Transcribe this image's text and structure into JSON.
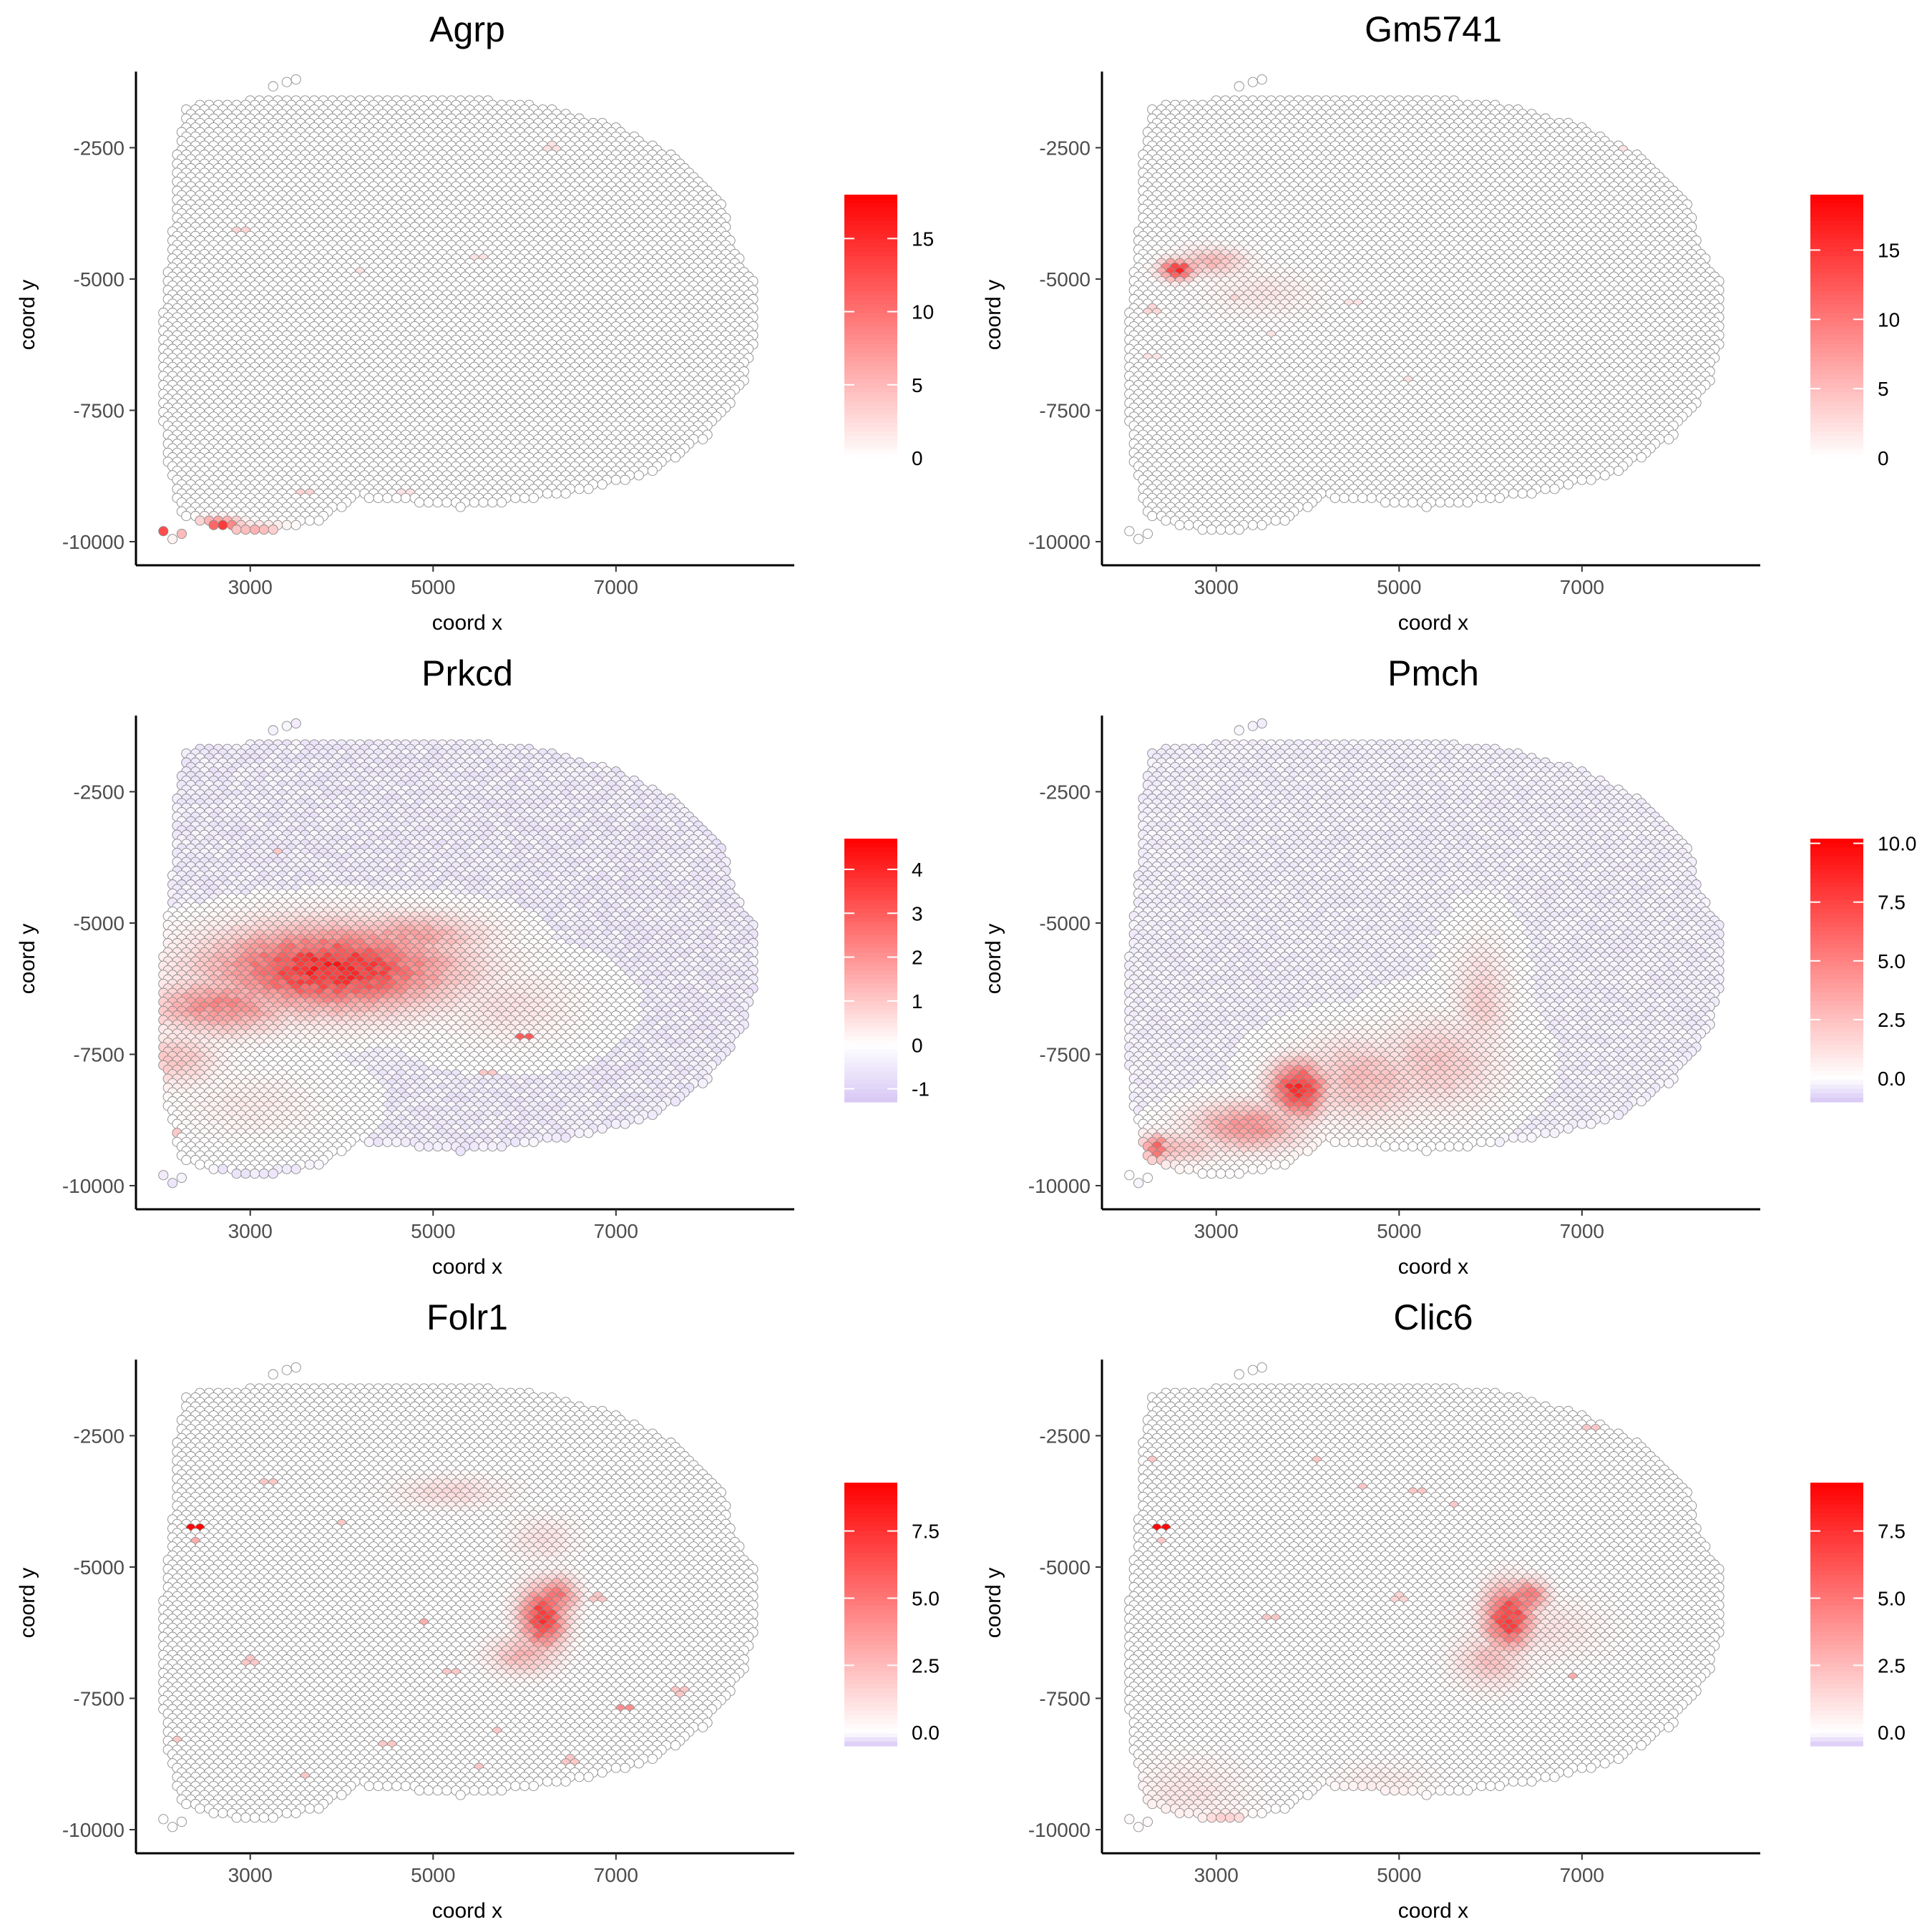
{
  "chart_data": [
    {
      "type": "scatter",
      "title": "Agrp",
      "xlabel": "coord x",
      "ylabel": "coord y",
      "x_ticks": [
        "3000",
        "5000",
        "7000"
      ],
      "y_ticks": [
        "-2500",
        "-5000",
        "-7500",
        "-10000"
      ],
      "xlim": [
        1750,
        8950
      ],
      "ylim": [
        -10450,
        -1050
      ],
      "legend_ticks": [
        "0",
        "5",
        "10",
        "15"
      ],
      "color_range": [
        0,
        18
      ],
      "legend_placement": "right",
      "grid": false,
      "colors": {
        "low": "#ffffff",
        "high": "#ff0000",
        "negative": "#d7c7f5"
      },
      "background_value": 0,
      "hotspots": [
        {
          "x": 2050,
          "y": -9780,
          "sx": 90,
          "sy": 80,
          "value": 15
        },
        {
          "x": 2200,
          "y": -9750,
          "sx": 120,
          "sy": 90,
          "value": 12
        },
        {
          "x": 2650,
          "y": -9690,
          "sx": 160,
          "sy": 80,
          "value": 15
        },
        {
          "x": 3050,
          "y": -9820,
          "sx": 260,
          "sy": 90,
          "value": 7
        }
      ],
      "scattered_points": [
        {
          "x": 2100,
          "y": -9500,
          "value": 3
        },
        {
          "x": 2900,
          "y": -4100,
          "value": 3
        },
        {
          "x": 4200,
          "y": -4900,
          "value": 2
        },
        {
          "x": 6300,
          "y": -2500,
          "value": 2
        },
        {
          "x": 4700,
          "y": -9100,
          "value": 2
        },
        {
          "x": 3600,
          "y": -9100,
          "value": 3
        },
        {
          "x": 5500,
          "y": -4600,
          "value": 2
        }
      ]
    },
    {
      "type": "scatter",
      "title": "Gm5741",
      "xlabel": "coord x",
      "ylabel": "coord y",
      "x_ticks": [
        "3000",
        "5000",
        "7000"
      ],
      "y_ticks": [
        "-2500",
        "-5000",
        "-7500",
        "-10000"
      ],
      "xlim": [
        1750,
        8950
      ],
      "ylim": [
        -10450,
        -1050
      ],
      "legend_ticks": [
        "0",
        "5",
        "10",
        "15"
      ],
      "color_range": [
        0,
        19
      ],
      "legend_placement": "right",
      "grid": false,
      "colors": {
        "low": "#ffffff",
        "high": "#ff0000",
        "negative": "#d7c7f5"
      },
      "background_value": 0,
      "hotspots": [
        {
          "x": 2580,
          "y": -4850,
          "sx": 130,
          "sy": 130,
          "value": 17
        },
        {
          "x": 2950,
          "y": -4700,
          "sx": 250,
          "sy": 180,
          "value": 6
        },
        {
          "x": 3500,
          "y": -5300,
          "sx": 400,
          "sy": 300,
          "value": 2
        }
      ],
      "scattered_points": [
        {
          "x": 2300,
          "y": -5600,
          "value": 3
        },
        {
          "x": 2300,
          "y": -6500,
          "value": 2
        },
        {
          "x": 3200,
          "y": -5400,
          "value": 3
        },
        {
          "x": 4500,
          "y": -5500,
          "value": 2
        },
        {
          "x": 5100,
          "y": -6900,
          "value": 2
        },
        {
          "x": 7500,
          "y": -2500,
          "value": 2
        },
        {
          "x": 3600,
          "y": -6100,
          "value": 2
        }
      ]
    },
    {
      "type": "scatter",
      "title": "Prkcd",
      "xlabel": "coord x",
      "ylabel": "coord y",
      "x_ticks": [
        "3000",
        "5000",
        "7000"
      ],
      "y_ticks": [
        "-2500",
        "-5000",
        "-7500",
        "-10000"
      ],
      "xlim": [
        1750,
        8950
      ],
      "ylim": [
        -10450,
        -1050
      ],
      "legend_ticks": [
        "-1",
        "0",
        "1",
        "2",
        "3",
        "4"
      ],
      "color_range": [
        -1.3,
        4.7
      ],
      "legend_placement": "right",
      "grid": false,
      "colors": {
        "low": "#ffffff",
        "high": "#ff0000",
        "negative": "#d7c7f5"
      },
      "background_value": -0.5,
      "hotspots": [
        {
          "x": 3900,
          "y": -5900,
          "sx": 850,
          "sy": 520,
          "value": 4.5
        },
        {
          "x": 4700,
          "y": -5300,
          "sx": 550,
          "sy": 300,
          "value": 2
        },
        {
          "x": 2700,
          "y": -6600,
          "sx": 500,
          "sy": 350,
          "value": 2.5
        },
        {
          "x": 2200,
          "y": -7600,
          "sx": 300,
          "sy": 350,
          "value": 1.2
        },
        {
          "x": 5800,
          "y": -6600,
          "sx": 500,
          "sy": 450,
          "value": 0.6
        },
        {
          "x": 3000,
          "y": -8500,
          "sx": 500,
          "sy": 400,
          "value": 0.4
        }
      ],
      "scattered_points": [
        {
          "x": 6000,
          "y": -7200,
          "value": 3
        },
        {
          "x": 5600,
          "y": -7900,
          "value": 1
        },
        {
          "x": 3300,
          "y": -3700,
          "value": 1
        },
        {
          "x": 2200,
          "y": -9000,
          "value": 1
        }
      ]
    },
    {
      "type": "scatter",
      "title": "Pmch",
      "xlabel": "coord x",
      "ylabel": "coord y",
      "x_ticks": [
        "3000",
        "5000",
        "7000"
      ],
      "y_ticks": [
        "-2500",
        "-5000",
        "-7500",
        "-10000"
      ],
      "xlim": [
        1750,
        8950
      ],
      "ylim": [
        -10450,
        -1050
      ],
      "legend_ticks": [
        "0.0",
        "2.5",
        "5.0",
        "7.5",
        "10.0"
      ],
      "color_range": [
        -1,
        10.2
      ],
      "legend_placement": "right",
      "grid": false,
      "colors": {
        "low": "#ffffff",
        "high": "#ff0000",
        "negative": "#d7c7f5"
      },
      "background_value": -0.3,
      "hotspots": [
        {
          "x": 3900,
          "y": -8200,
          "sx": 200,
          "sy": 350,
          "value": 10
        },
        {
          "x": 3350,
          "y": -8900,
          "sx": 400,
          "sy": 300,
          "value": 5
        },
        {
          "x": 2500,
          "y": -9300,
          "sx": 400,
          "sy": 200,
          "value": 3
        },
        {
          "x": 4600,
          "y": -8000,
          "sx": 500,
          "sy": 500,
          "value": 3
        },
        {
          "x": 5400,
          "y": -7700,
          "sx": 450,
          "sy": 550,
          "value": 2.5
        },
        {
          "x": 5900,
          "y": -6500,
          "sx": 200,
          "sy": 700,
          "value": 2
        },
        {
          "x": 2350,
          "y": -9300,
          "sx": 80,
          "sy": 150,
          "value": 8
        }
      ],
      "scattered_points": []
    },
    {
      "type": "scatter",
      "title": "Folr1",
      "xlabel": "coord x",
      "ylabel": "coord y",
      "x_ticks": [
        "3000",
        "5000",
        "7000"
      ],
      "y_ticks": [
        "-2500",
        "-5000",
        "-7500",
        "-10000"
      ],
      "xlim": [
        1750,
        8950
      ],
      "ylim": [
        -10450,
        -1050
      ],
      "legend_ticks": [
        "0.0",
        "2.5",
        "5.0",
        "7.5"
      ],
      "color_range": [
        -0.5,
        9.3
      ],
      "legend_placement": "right",
      "grid": false,
      "colors": {
        "low": "#ffffff",
        "high": "#ff0000",
        "negative": "#d7c7f5"
      },
      "background_value": 0,
      "hotspots": [
        {
          "x": 6200,
          "y": -6000,
          "sx": 170,
          "sy": 400,
          "value": 8.5
        },
        {
          "x": 6350,
          "y": -5600,
          "sx": 150,
          "sy": 250,
          "value": 6
        },
        {
          "x": 6000,
          "y": -6700,
          "sx": 250,
          "sy": 250,
          "value": 3
        },
        {
          "x": 6200,
          "y": -4500,
          "sx": 250,
          "sy": 300,
          "value": 1.2
        },
        {
          "x": 5200,
          "y": -3600,
          "sx": 400,
          "sy": 200,
          "value": 1.5
        }
      ],
      "scattered_points": [
        {
          "x": 2400,
          "y": -4250,
          "value": 9
        },
        {
          "x": 2400,
          "y": -4500,
          "value": 3
        },
        {
          "x": 3200,
          "y": -3400,
          "value": 2
        },
        {
          "x": 4000,
          "y": -4200,
          "value": 2
        },
        {
          "x": 3000,
          "y": -6800,
          "value": 2
        },
        {
          "x": 4500,
          "y": -8400,
          "value": 2
        },
        {
          "x": 5200,
          "y": -7000,
          "value": 2
        },
        {
          "x": 7100,
          "y": -7700,
          "value": 4
        },
        {
          "x": 6800,
          "y": -5600,
          "value": 2
        },
        {
          "x": 7700,
          "y": -7400,
          "value": 2
        },
        {
          "x": 5700,
          "y": -8100,
          "value": 2
        },
        {
          "x": 3600,
          "y": -9000,
          "value": 2
        },
        {
          "x": 4900,
          "y": -6100,
          "value": 3
        },
        {
          "x": 6500,
          "y": -8700,
          "value": 2
        },
        {
          "x": 2200,
          "y": -8300,
          "value": 2
        },
        {
          "x": 5500,
          "y": -8800,
          "value": 2
        }
      ]
    },
    {
      "type": "scatter",
      "title": "Clic6",
      "xlabel": "coord x",
      "ylabel": "coord y",
      "x_ticks": [
        "3000",
        "5000",
        "7000"
      ],
      "y_ticks": [
        "-2500",
        "-5000",
        "-7500",
        "-10000"
      ],
      "xlim": [
        1750,
        8950
      ],
      "ylim": [
        -10450,
        -1050
      ],
      "legend_ticks": [
        "0.0",
        "2.5",
        "5.0",
        "7.5"
      ],
      "color_range": [
        -0.5,
        9.3
      ],
      "legend_placement": "right",
      "grid": false,
      "colors": {
        "low": "#ffffff",
        "high": "#ff0000",
        "negative": "#d7c7f5"
      },
      "background_value": 0,
      "hotspots": [
        {
          "x": 6200,
          "y": -6000,
          "sx": 180,
          "sy": 400,
          "value": 8.5
        },
        {
          "x": 6400,
          "y": -5600,
          "sx": 150,
          "sy": 220,
          "value": 6
        },
        {
          "x": 6000,
          "y": -6800,
          "sx": 250,
          "sy": 350,
          "value": 2.5
        },
        {
          "x": 6500,
          "y": -6200,
          "sx": 500,
          "sy": 400,
          "value": 1.2
        },
        {
          "x": 2700,
          "y": -9300,
          "sx": 450,
          "sy": 450,
          "value": 1
        },
        {
          "x": 3100,
          "y": -9900,
          "sx": 200,
          "sy": 150,
          "value": 2.5
        },
        {
          "x": 4800,
          "y": -9100,
          "sx": 400,
          "sy": 250,
          "value": 0.8
        }
      ],
      "scattered_points": [
        {
          "x": 2400,
          "y": -4250,
          "value": 9
        },
        {
          "x": 2400,
          "y": -4500,
          "value": 2
        },
        {
          "x": 2300,
          "y": -3000,
          "value": 2
        },
        {
          "x": 4600,
          "y": -3500,
          "value": 2
        },
        {
          "x": 5200,
          "y": -3600,
          "value": 2
        },
        {
          "x": 5600,
          "y": -3800,
          "value": 2
        },
        {
          "x": 6900,
          "y": -7100,
          "value": 3
        },
        {
          "x": 4100,
          "y": -3000,
          "value": 2
        },
        {
          "x": 5700,
          "y": -9500,
          "value": 2
        },
        {
          "x": 7100,
          "y": -2400,
          "value": 2
        },
        {
          "x": 3600,
          "y": -6000,
          "value": 2
        },
        {
          "x": 5000,
          "y": -5600,
          "value": 1.5
        }
      ]
    }
  ]
}
